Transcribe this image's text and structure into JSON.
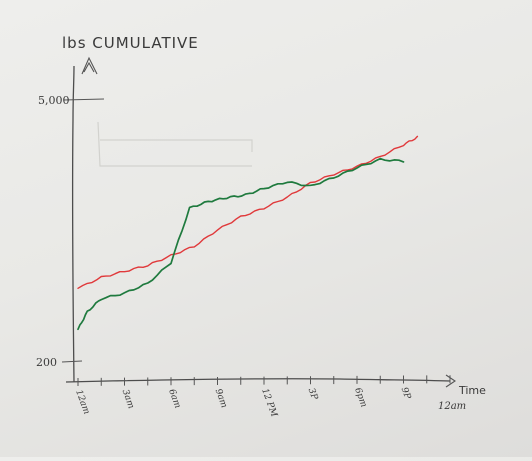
{
  "chart_data": {
    "type": "line",
    "title": "lbs CUMULATIVE",
    "xlabel": "Time",
    "x_end_note": "12am",
    "x": [
      "12am",
      "3am",
      "6am",
      "9am",
      "12 PM",
      "3P",
      "6pm",
      "9P"
    ],
    "ylim": [
      200,
      5000
    ],
    "ytick_labels": [
      "5,000",
      "200"
    ],
    "grid": false,
    "legend": "none",
    "series": [
      {
        "color": "#e0393b",
        "x": [
          0,
          0.5,
          1.0,
          1.5,
          2.0,
          2.5,
          3.0,
          3.5,
          4.0,
          4.5,
          5.0,
          5.5,
          6.0,
          6.5,
          7.0,
          7.3
        ],
        "y": [
          1550,
          1750,
          1860,
          1970,
          2150,
          2320,
          2620,
          2860,
          3020,
          3220,
          3480,
          3640,
          3780,
          3960,
          4180,
          4320
        ]
      },
      {
        "color": "#1f7a3e",
        "x": [
          0,
          0.2,
          0.5,
          1.0,
          1.5,
          2.0,
          2.4,
          2.8,
          3.2,
          3.6,
          4.0,
          4.5,
          5.0,
          5.5,
          6.0,
          6.5,
          7.0
        ],
        "y": [
          800,
          1120,
          1360,
          1460,
          1640,
          2020,
          3020,
          3140,
          3210,
          3260,
          3380,
          3500,
          3420,
          3580,
          3760,
          3910,
          3880
        ]
      }
    ]
  }
}
